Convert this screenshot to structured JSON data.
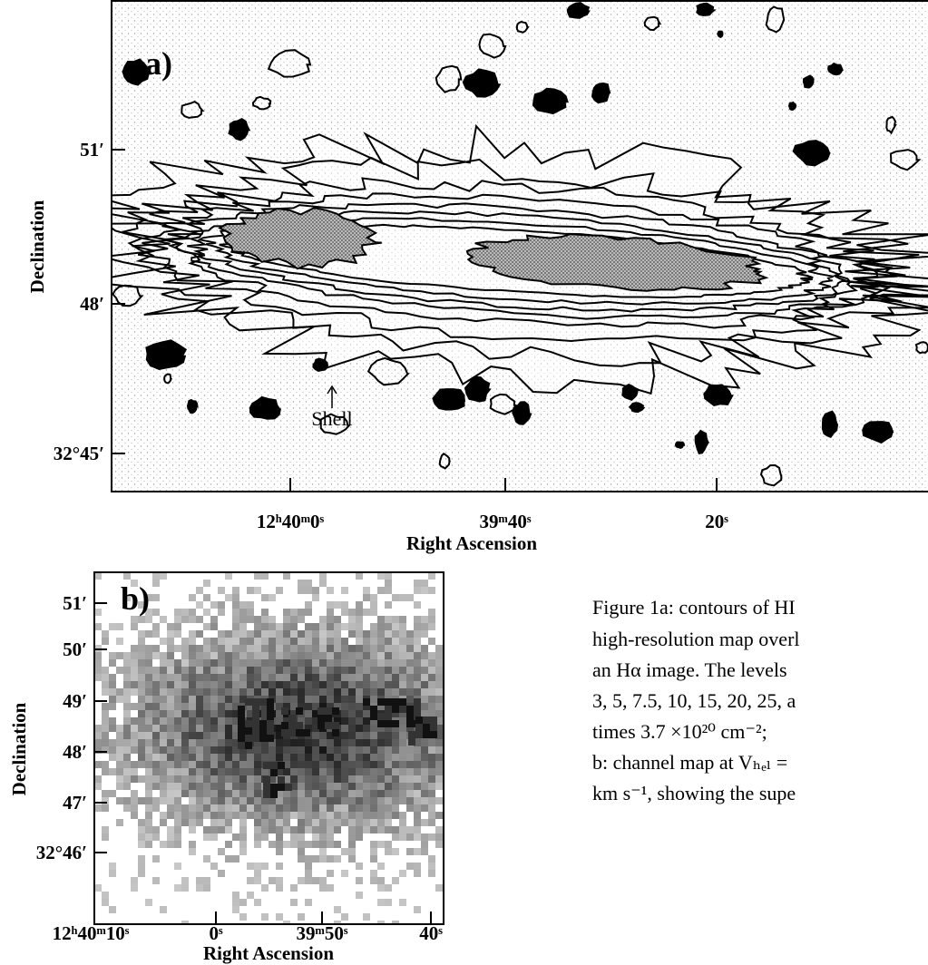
{
  "panel_a": {
    "label": "a)",
    "y_ticks": [
      "51′",
      "48′",
      "32°45′"
    ],
    "x_ticks": [
      "12ʰ40ᵐ0ˢ",
      "39ᵐ40ˢ",
      "20ˢ"
    ],
    "x_axis_label": "Right Ascension",
    "y_axis_label": "Declination",
    "annotation": "Shell"
  },
  "panel_b": {
    "label": "b)",
    "y_ticks": [
      "51′",
      "50′",
      "49′",
      "48′",
      "47′",
      "32°46′"
    ],
    "x_ticks": [
      "12ʰ40ᵐ10ˢ",
      "0ˢ",
      "39ᵐ50ˢ",
      "40ˢ"
    ],
    "x_axis_label": "Right Ascension",
    "y_axis_label": "Declination"
  },
  "caption": {
    "lines": [
      "Figure 1a: contours of HI",
      "high-resolution map overl",
      "an Hα image. The levels",
      "3, 5, 7.5, 10, 15, 20, 25, a",
      "times 3.7 ×10²⁰ cm⁻²;",
      "b: channel map at Vₕₑₗ =",
      "km s⁻¹, showing the supe"
    ]
  }
}
